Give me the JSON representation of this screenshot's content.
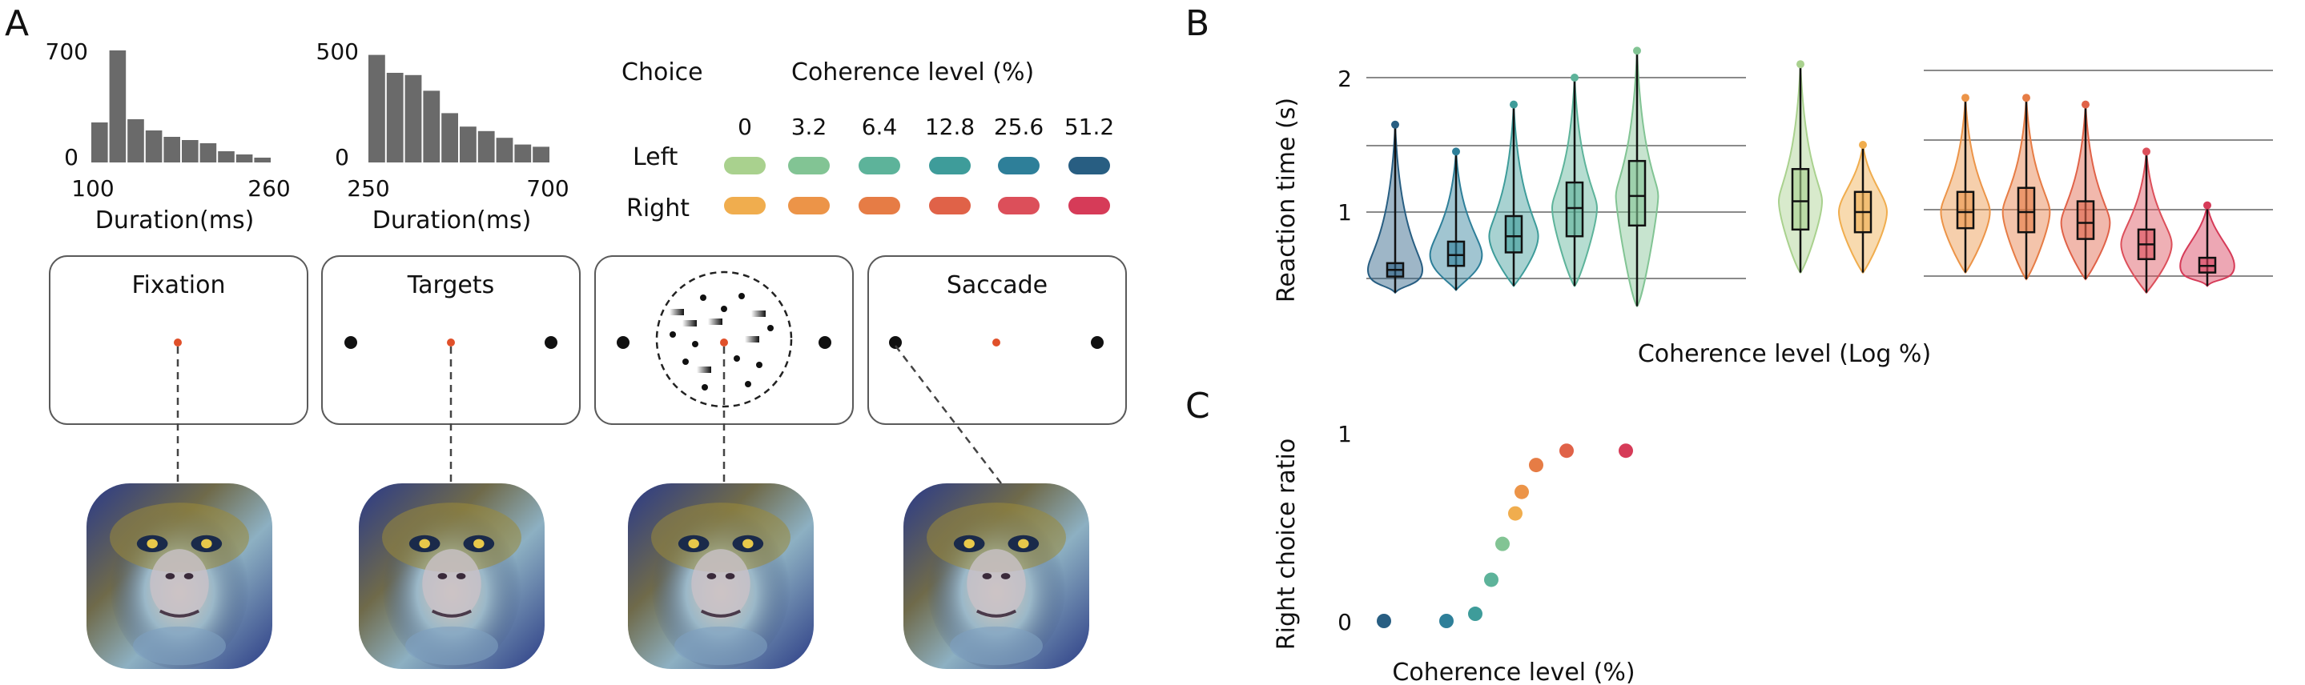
{
  "panel_labels": {
    "a": "A",
    "b": "B",
    "c": "C"
  },
  "histograms": [
    {
      "ymax_label": "700",
      "ymin_label": "0",
      "xmin_label": "100",
      "xmax_label": "260",
      "xlabel": "Duration(ms)",
      "values": [
        250,
        700,
        270,
        200,
        160,
        140,
        120,
        70,
        50,
        30
      ]
    },
    {
      "ymax_label": "500",
      "ymin_label": "0",
      "xmin_label": "250",
      "xmax_label": "700",
      "xlabel": "Duration(ms)",
      "values": [
        480,
        400,
        390,
        320,
        220,
        160,
        140,
        110,
        80,
        70
      ]
    }
  ],
  "legend": {
    "choice_title": "Choice",
    "coherence_title": "Coherence level (%)",
    "levels": [
      "0",
      "3.2",
      "6.4",
      "12.8",
      "25.6",
      "51.2"
    ],
    "left_label": "Left",
    "right_label": "Right",
    "left_colors": [
      "#a9d18e",
      "#82c494",
      "#5db39a",
      "#3e9c9a",
      "#2e7f99",
      "#285e82"
    ],
    "right_colors": [
      "#f0ad4e",
      "#ec9448",
      "#e67c45",
      "#e06248",
      "#dc4f5a",
      "#d63b58"
    ]
  },
  "stages": [
    {
      "title": "Fixation"
    },
    {
      "title": "Targets"
    },
    {
      "title": ""
    },
    {
      "title": "Saccade"
    }
  ],
  "chart_data": [
    {
      "type": "histogram",
      "xlabel": "Duration(ms)",
      "xlim": [
        100,
        260
      ],
      "ylim": [
        0,
        700
      ],
      "values": [
        250,
        700,
        270,
        200,
        160,
        140,
        120,
        70,
        50,
        30
      ]
    },
    {
      "type": "histogram",
      "xlabel": "Duration(ms)",
      "xlim": [
        250,
        700
      ],
      "ylim": [
        0,
        500
      ],
      "values": [
        480,
        400,
        390,
        320,
        220,
        160,
        140,
        110,
        80,
        70
      ]
    },
    {
      "type": "violin",
      "ylabel": "Reaction time (s)",
      "xlabel": "Coherence level (Log %)",
      "yticks": [
        "2",
        "1"
      ],
      "groups": [
        {
          "side": "left",
          "level": "51.2",
          "color": "#285e82",
          "median": 0.57,
          "q1": 0.52,
          "q3": 0.62,
          "min": 0.4,
          "max": 1.65
        },
        {
          "side": "left",
          "level": "25.6",
          "color": "#2e7f99",
          "median": 0.68,
          "q1": 0.6,
          "q3": 0.78,
          "min": 0.42,
          "max": 1.45
        },
        {
          "side": "left",
          "level": "12.8",
          "color": "#3e9c9a",
          "median": 0.82,
          "q1": 0.7,
          "q3": 0.97,
          "min": 0.45,
          "max": 1.8
        },
        {
          "side": "left",
          "level": "6.4",
          "color": "#5db39a",
          "median": 1.03,
          "q1": 0.82,
          "q3": 1.22,
          "min": 0.45,
          "max": 2.0
        },
        {
          "side": "left",
          "level": "3.2",
          "color": "#82c494",
          "median": 1.12,
          "q1": 0.9,
          "q3": 1.38,
          "min": 0.3,
          "max": 2.2
        },
        {
          "side": "both",
          "level": "0",
          "color": "#a9d18e",
          "median": 1.08,
          "q1": 0.87,
          "q3": 1.32,
          "min": 0.55,
          "max": 2.1
        },
        {
          "side": "both",
          "level": "0",
          "color": "#f0ad4e",
          "median": 1.0,
          "q1": 0.85,
          "q3": 1.15,
          "min": 0.55,
          "max": 1.5
        },
        {
          "side": "right",
          "level": "3.2",
          "color": "#ec9448",
          "median": 1.0,
          "q1": 0.88,
          "q3": 1.15,
          "min": 0.55,
          "max": 1.85
        },
        {
          "side": "right",
          "level": "6.4",
          "color": "#e67c45",
          "median": 1.0,
          "q1": 0.85,
          "q3": 1.18,
          "min": 0.5,
          "max": 1.85
        },
        {
          "side": "right",
          "level": "12.8",
          "color": "#e06248",
          "median": 0.92,
          "q1": 0.8,
          "q3": 1.08,
          "min": 0.5,
          "max": 1.8
        },
        {
          "side": "right",
          "level": "25.6",
          "color": "#dc4f5a",
          "median": 0.76,
          "q1": 0.65,
          "q3": 0.87,
          "min": 0.4,
          "max": 1.45
        },
        {
          "side": "right",
          "level": "51.2",
          "color": "#d63b58",
          "median": 0.6,
          "q1": 0.55,
          "q3": 0.66,
          "min": 0.45,
          "max": 1.05
        }
      ]
    },
    {
      "type": "scatter",
      "ylabel": "Right choice ratio",
      "xlabel": "Coherence level (%)",
      "yticks": [
        "1",
        "0"
      ],
      "points": [
        {
          "level": "Left 51.2",
          "y": 0.0,
          "color": "#285e82"
        },
        {
          "level": "Left 25.6",
          "y": 0.0,
          "color": "#2e7f99"
        },
        {
          "level": "Left 12.8",
          "y": 0.04,
          "color": "#3e9c9a"
        },
        {
          "level": "Left 6.4",
          "y": 0.23,
          "color": "#5db39a"
        },
        {
          "level": "Left 3.2",
          "y": 0.43,
          "color": "#82c494"
        },
        {
          "level": "0",
          "y": 0.6,
          "color": "#f0ad4e"
        },
        {
          "level": "Right 3.2",
          "y": 0.72,
          "color": "#ec9448"
        },
        {
          "level": "Right 6.4",
          "y": 0.87,
          "color": "#e67c45"
        },
        {
          "level": "Right 12.8",
          "y": 0.95,
          "color": "#e06248"
        },
        {
          "level": "Right 51.2",
          "y": 0.95,
          "color": "#d63b58"
        }
      ]
    }
  ]
}
